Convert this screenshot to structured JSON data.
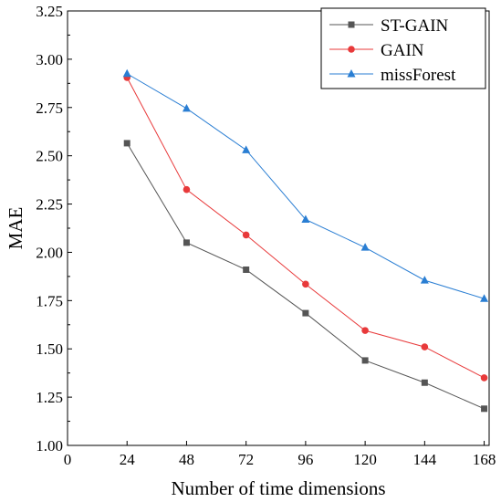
{
  "chart_data": {
    "type": "line",
    "xlabel": "Number of time dimensions",
    "ylabel": "MAE",
    "x": [
      24,
      48,
      72,
      96,
      120,
      144,
      168
    ],
    "xlim": [
      0,
      170
    ],
    "ylim": [
      1.0,
      3.25
    ],
    "x_ticks": [
      0,
      24,
      48,
      72,
      96,
      120,
      144,
      168
    ],
    "x_tick_labels": [
      "0",
      "24",
      "48",
      "72",
      "96",
      "120",
      "144",
      "168"
    ],
    "y_ticks": [
      1.0,
      1.25,
      1.5,
      1.75,
      2.0,
      2.25,
      2.5,
      2.75,
      3.0,
      3.25
    ],
    "y_tick_labels": [
      "1.00",
      "1.25",
      "1.50",
      "1.75",
      "2.00",
      "2.25",
      "2.50",
      "2.75",
      "3.00",
      "3.25"
    ],
    "grid": false,
    "legend_position": "top-right",
    "series": [
      {
        "name": "ST-GAIN",
        "color": "#555555",
        "marker": "square",
        "values": [
          2.565,
          2.05,
          1.91,
          1.685,
          1.44,
          1.325,
          1.19
        ]
      },
      {
        "name": "GAIN",
        "color": "#e8393a",
        "marker": "circle",
        "values": [
          2.905,
          2.325,
          2.09,
          1.835,
          1.595,
          1.51,
          1.35
        ]
      },
      {
        "name": "missForest",
        "color": "#2a7ed3",
        "marker": "triangle",
        "values": [
          2.925,
          2.745,
          2.53,
          2.17,
          2.025,
          1.855,
          1.76
        ]
      }
    ]
  }
}
